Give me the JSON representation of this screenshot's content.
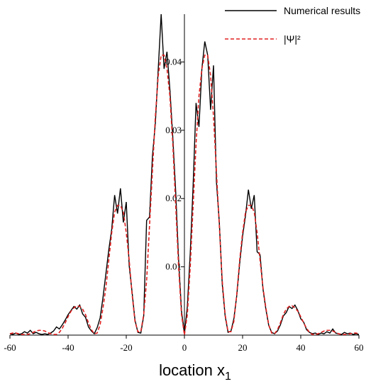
{
  "chart_data": {
    "type": "line",
    "xlabel": "location x",
    "xlabel_sub": "1",
    "xlim": [
      -60,
      60
    ],
    "xticks": [
      -60,
      -40,
      -20,
      0,
      20,
      40,
      60
    ],
    "ylim": [
      0,
      0.047
    ],
    "yticks": [
      0.01,
      0.02,
      0.03,
      0.04
    ],
    "legend": "top-right",
    "x": [
      -60,
      -59,
      -58,
      -57,
      -56,
      -55,
      -54,
      -53,
      -52,
      -51,
      -50,
      -49,
      -48,
      -47,
      -46,
      -45,
      -44,
      -43,
      -42,
      -41,
      -40,
      -39,
      -38,
      -37,
      -36,
      -35,
      -34,
      -33,
      -32,
      -31,
      -30,
      -29,
      -28,
      -27,
      -26,
      -25,
      -24,
      -23,
      -22,
      -21,
      -20,
      -19,
      -18,
      -17,
      -16,
      -15,
      -14,
      -13,
      -12,
      -11,
      -10,
      -9,
      -8,
      -7,
      -6,
      -5,
      -4,
      -3,
      -2,
      -1,
      0,
      1,
      2,
      3,
      4,
      5,
      6,
      7,
      8,
      9,
      10,
      11,
      12,
      13,
      14,
      15,
      16,
      17,
      18,
      19,
      20,
      21,
      22,
      23,
      24,
      25,
      26,
      27,
      28,
      29,
      30,
      31,
      32,
      33,
      34,
      35,
      36,
      37,
      38,
      39,
      40,
      41,
      42,
      43,
      44,
      45,
      46,
      47,
      48,
      49,
      50,
      51,
      52,
      53,
      54,
      55,
      56,
      57,
      58,
      59,
      60
    ],
    "series": [
      {
        "name": "Numerical results",
        "color": "#000000",
        "dashed": false,
        "values": [
          0.0002,
          0.0001,
          0.0003,
          0.0001,
          0.0002,
          0.0005,
          0.0003,
          0.0007,
          0.0002,
          0.0004,
          0.0002,
          0.0001,
          0.0002,
          0.0001,
          0.0003,
          0.0006,
          0.0012,
          0.0009,
          0.0015,
          0.0022,
          0.003,
          0.0036,
          0.0042,
          0.0038,
          0.0044,
          0.0031,
          0.0026,
          0.0012,
          0.0006,
          0.0002,
          0.0011,
          0.0025,
          0.0055,
          0.009,
          0.0125,
          0.0155,
          0.0205,
          0.0178,
          0.0215,
          0.0165,
          0.0195,
          0.0102,
          0.0063,
          0.0022,
          0.0004,
          0.0003,
          0.0028,
          0.0168,
          0.0173,
          0.0262,
          0.031,
          0.039,
          0.047,
          0.039,
          0.0415,
          0.036,
          0.029,
          0.021,
          0.011,
          0.0035,
          0.0002,
          0.0042,
          0.012,
          0.022,
          0.034,
          0.0305,
          0.039,
          0.043,
          0.041,
          0.033,
          0.0395,
          0.0225,
          0.0165,
          0.0075,
          0.0028,
          0.0004,
          0.0006,
          0.0024,
          0.0058,
          0.0105,
          0.0145,
          0.0175,
          0.0213,
          0.0185,
          0.0205,
          0.0122,
          0.0118,
          0.0068,
          0.0038,
          0.0014,
          0.0004,
          0.0002,
          0.0006,
          0.0015,
          0.0028,
          0.0033,
          0.0042,
          0.0039,
          0.0044,
          0.0036,
          0.0024,
          0.0019,
          0.0008,
          0.0004,
          0.0002,
          0.0003,
          0.0001,
          0.0003,
          0.0002,
          0.0005,
          0.0003,
          0.0009,
          0.0003,
          0.0002,
          0.0001,
          0.0004,
          0.0002,
          0.0003,
          0.0001,
          0.0002,
          0.0001
        ]
      },
      {
        "name": "|Ψ|²",
        "color": "#e02020",
        "dashed": true,
        "values": [
          0.0002,
          0.0003,
          0.0003,
          0.0002,
          0.0001,
          0.0001,
          0.0001,
          0.0002,
          0.0004,
          0.0006,
          0.0007,
          0.0007,
          0.0006,
          0.0004,
          0.0002,
          0.0001,
          0.0001,
          0.0004,
          0.001,
          0.0018,
          0.0027,
          0.0035,
          0.004,
          0.0043,
          0.0042,
          0.0038,
          0.003,
          0.0018,
          0.0008,
          0.0002,
          0.0003,
          0.0015,
          0.004,
          0.007,
          0.011,
          0.015,
          0.018,
          0.019,
          0.019,
          0.018,
          0.015,
          0.011,
          0.006,
          0.002,
          0.0005,
          0.0005,
          0.003,
          0.008,
          0.016,
          0.024,
          0.032,
          0.038,
          0.041,
          0.041,
          0.039,
          0.035,
          0.028,
          0.019,
          0.01,
          0.003,
          0,
          0.003,
          0.01,
          0.019,
          0.028,
          0.035,
          0.039,
          0.041,
          0.041,
          0.038,
          0.032,
          0.024,
          0.016,
          0.008,
          0.003,
          0.0005,
          0.0005,
          0.002,
          0.006,
          0.011,
          0.015,
          0.018,
          0.019,
          0.019,
          0.018,
          0.015,
          0.011,
          0.007,
          0.004,
          0.0015,
          0.0003,
          0.0002,
          0.0008,
          0.0018,
          0.003,
          0.0038,
          0.0042,
          0.0043,
          0.004,
          0.0035,
          0.0027,
          0.0018,
          0.001,
          0.0004,
          0.0001,
          0.0001,
          0.0002,
          0.0004,
          0.0006,
          0.0007,
          0.0007,
          0.0006,
          0.0004,
          0.0002,
          0.0001,
          0.0001,
          0.0001,
          0.0002,
          0.0003,
          0.0003,
          0.0002
        ]
      }
    ]
  }
}
